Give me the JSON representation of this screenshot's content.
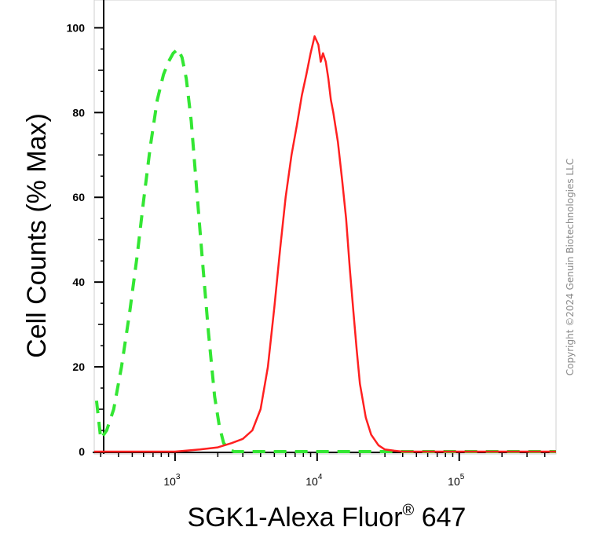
{
  "chart_data": {
    "type": "line",
    "title": "",
    "xlabel": "SGK1-Alexa Fluor",
    "xlabel_sup": "®",
    "xlabel_suffix": " 647",
    "ylabel": "Cell Counts (% Max)",
    "x_scale": "log",
    "xlim": [
      270,
      480000
    ],
    "ylim": [
      0,
      101
    ],
    "y_ticks": [
      0,
      20,
      40,
      60,
      80,
      100
    ],
    "x_ticks": [
      {
        "value": 1000,
        "base": "10",
        "exp": "3"
      },
      {
        "value": 10000,
        "base": "10",
        "exp": "4"
      },
      {
        "value": 100000,
        "base": "10",
        "exp": "5"
      }
    ],
    "grid": false,
    "legend": "none",
    "series": [
      {
        "style": "dashed",
        "color": "#33e633",
        "x": [
          280,
          300,
          330,
          370,
          420,
          480,
          540,
          600,
          670,
          750,
          830,
          900,
          970,
          1050,
          1120,
          1200,
          1300,
          1420,
          1560,
          1720,
          1900,
          2050,
          2200,
          2400,
          2600,
          3000,
          4000,
          6000,
          10000,
          20000,
          50000,
          100000,
          200000,
          480000
        ],
        "y": [
          12,
          3,
          5,
          10,
          20,
          33,
          46,
          59,
          72,
          83,
          89,
          92,
          94,
          95,
          93,
          88,
          78,
          62,
          45,
          28,
          13,
          6,
          2,
          0.5,
          0,
          0,
          0,
          0,
          0,
          0,
          0,
          0,
          0,
          0
        ]
      },
      {
        "style": "solid",
        "color": "#ff2020",
        "x": [
          270,
          1000,
          1500,
          2000,
          2500,
          3000,
          3500,
          4000,
          4500,
          5000,
          5500,
          6000,
          6600,
          7200,
          7800,
          8400,
          9000,
          9600,
          10200,
          10600,
          11000,
          11500,
          12000,
          12500,
          13000,
          14000,
          15000,
          16000,
          17000,
          18000,
          19000,
          20000,
          22000,
          24000,
          27000,
          30000,
          35000,
          40000,
          60000,
          100000,
          200000,
          480000
        ],
        "y": [
          0,
          0,
          0.5,
          1,
          2,
          3,
          5,
          10,
          20,
          34,
          48,
          60,
          70,
          77,
          84,
          89,
          94,
          98,
          96,
          92,
          94,
          92,
          88,
          83,
          80,
          73,
          64,
          55,
          43,
          33,
          24,
          16,
          8,
          4,
          1.5,
          0.5,
          0.2,
          0,
          0,
          0,
          0,
          0
        ]
      }
    ]
  },
  "copyright": "Copyright ©2024 Genuin Biotechnologies LLC"
}
